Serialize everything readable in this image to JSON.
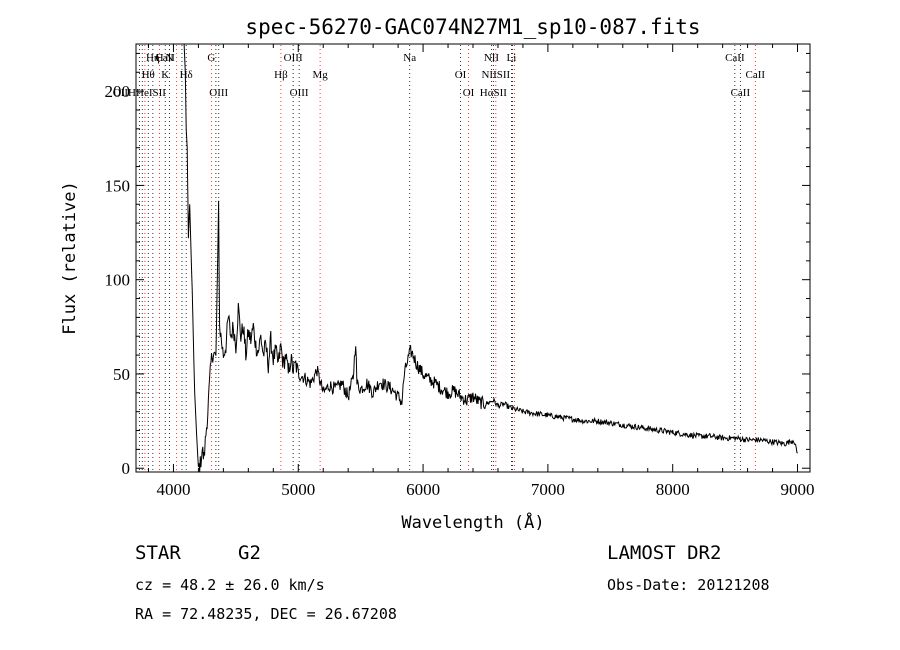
{
  "chart_data": {
    "type": "line",
    "title": "spec-56270-GAC074N27M1_sp10-087.fits",
    "xlabel": "Wavelength (Å)",
    "ylabel": "Flux (relative)",
    "xlim": [
      3700,
      9100
    ],
    "ylim": [
      -2,
      225
    ],
    "xticks": [
      4000,
      5000,
      6000,
      7000,
      8000,
      9000
    ],
    "yticks": [
      0,
      50,
      100,
      150,
      200
    ],
    "grid": false,
    "series": [
      {
        "color": "#000000",
        "x": [
          3700,
          3750,
          3800,
          3850,
          3900,
          3950,
          4000,
          4030,
          4050,
          4070,
          4085,
          4095,
          4102,
          4110,
          4120,
          4130,
          4150,
          4170,
          4190,
          4200,
          4215,
          4230,
          4245,
          4260,
          4275,
          4290,
          4300,
          4310,
          4320,
          4340,
          4355,
          4362,
          4370,
          4380,
          4400,
          4420,
          4440,
          4460,
          4480,
          4500,
          4520,
          4540,
          4560,
          4580,
          4600,
          4620,
          4640,
          4660,
          4680,
          4700,
          4720,
          4740,
          4760,
          4780,
          4800,
          4820,
          4840,
          4860,
          4880,
          4900,
          4920,
          4940,
          4960,
          4980,
          5000,
          5050,
          5100,
          5150,
          5200,
          5250,
          5300,
          5350,
          5400,
          5440,
          5460,
          5470,
          5500,
          5550,
          5600,
          5650,
          5700,
          5750,
          5800,
          5830,
          5850,
          5880,
          5900,
          5920,
          5950,
          6000,
          6050,
          6100,
          6150,
          6200,
          6250,
          6300,
          6350,
          6400,
          6450,
          6500,
          6563,
          6600,
          6650,
          6700,
          6800,
          6900,
          7000,
          7100,
          7200,
          7300,
          7400,
          7500,
          7600,
          7700,
          7800,
          7900,
          8000,
          8100,
          8200,
          8300,
          8400,
          8500,
          8600,
          8700,
          8800,
          8900,
          8970,
          8990,
          9000
        ],
        "y": [
          225,
          225,
          225,
          225,
          225,
          225,
          225,
          225,
          225,
          225,
          225,
          210,
          180,
          170,
          122,
          140,
          95,
          40,
          12,
          0,
          2,
          10,
          5,
          18,
          30,
          45,
          55,
          60,
          62,
          58,
          110,
          140,
          75,
          70,
          60,
          65,
          80,
          70,
          75,
          65,
          85,
          70,
          75,
          60,
          72,
          68,
          75,
          65,
          62,
          70,
          60,
          65,
          55,
          68,
          58,
          62,
          55,
          65,
          55,
          60,
          50,
          58,
          52,
          55,
          50,
          48,
          45,
          52,
          40,
          44,
          42,
          45,
          38,
          48,
          68,
          45,
          42,
          45,
          40,
          46,
          44,
          42,
          38,
          35,
          50,
          58,
          62,
          60,
          55,
          50,
          47,
          45,
          42,
          40,
          41,
          38,
          36,
          38,
          35,
          34,
          36,
          33,
          34,
          32,
          30,
          29,
          28,
          27,
          26,
          25,
          25,
          24,
          23,
          22,
          21,
          20,
          19,
          18,
          17,
          17,
          16,
          16,
          15,
          15,
          14,
          13,
          15,
          10,
          8
        ]
      }
    ],
    "line_labels": [
      {
        "text": "CaII",
        "x": 3934,
        "row": 0,
        "color": "#ff0000"
      },
      {
        "text": "Hη",
        "x": 3835,
        "row": 0,
        "color": "#ff0000"
      },
      {
        "text": "H",
        "x": 3889,
        "row": 0,
        "color": "#ff0000"
      },
      {
        "text": "N",
        "x": 3968,
        "row": 0,
        "color": "#ff0000"
      },
      {
        "text": "G",
        "x": 4304,
        "row": 0,
        "color": "#ff0000"
      },
      {
        "text": "OIII",
        "x": 4959,
        "row": 0,
        "color": "#ff0000"
      },
      {
        "text": "Na",
        "x": 5893,
        "row": 0,
        "color": "#ff0000"
      },
      {
        "text": "NII",
        "x": 6548,
        "row": 0,
        "color": "#ff0000"
      },
      {
        "text": "Li",
        "x": 6708,
        "row": 0,
        "color": "#ff0000"
      },
      {
        "text": "CaII",
        "x": 8498,
        "row": 0,
        "color": "#ff0000"
      },
      {
        "text": "Hθ",
        "x": 3798,
        "row": 1,
        "color": "#ff0000"
      },
      {
        "text": "K",
        "x": 3934,
        "row": 1,
        "color": "#ff0000"
      },
      {
        "text": "Hδ",
        "x": 4102,
        "row": 1,
        "color": "#ff0000"
      },
      {
        "text": "Hβ",
        "x": 4861,
        "row": 1,
        "color": "#ff0000"
      },
      {
        "text": "Mg",
        "x": 5175,
        "row": 1,
        "color": "#ff0000"
      },
      {
        "text": "OI",
        "x": 6300,
        "row": 1,
        "color": "#ff0000"
      },
      {
        "text": "NIISII",
        "x": 6583,
        "row": 1,
        "color": "#ff0000"
      },
      {
        "text": "CaII",
        "x": 8662,
        "row": 1,
        "color": "#ff0000"
      },
      {
        "text": "OIIHHeISII",
        "x": 3727,
        "row": 2,
        "color": "#ff0000"
      },
      {
        "text": "OIII",
        "x": 4363,
        "row": 2,
        "color": "#ff0000"
      },
      {
        "text": "OIII",
        "x": 5007,
        "row": 2,
        "color": "#ff0000"
      },
      {
        "text": "OI",
        "x": 6364,
        "row": 2,
        "color": "#ff0000"
      },
      {
        "text": "HαSII",
        "x": 6563,
        "row": 2,
        "color": "#ff0000"
      },
      {
        "text": "CaII",
        "x": 8542,
        "row": 2,
        "color": "#ff0000"
      }
    ],
    "line_markers": [
      3727,
      3750,
      3771,
      3798,
      3835,
      3889,
      3934,
      3968,
      4026,
      4068,
      4102,
      4304,
      4340,
      4363,
      4861,
      4959,
      5007,
      5175,
      5893,
      6300,
      6364,
      6548,
      6563,
      6583,
      6708,
      6717,
      6731,
      8498,
      8542,
      8662
    ],
    "marker_colors": {
      "emission": "#ff0000",
      "absorption": "#000000"
    }
  },
  "info": {
    "class": "STAR",
    "subclass": "G2",
    "survey": "LAMOST DR2",
    "redshift": "cz = 48.2 ± 26.0 km/s",
    "obs_date": "Obs-Date: 20121208",
    "coords": "RA =  72.48235, DEC =  26.67208"
  }
}
